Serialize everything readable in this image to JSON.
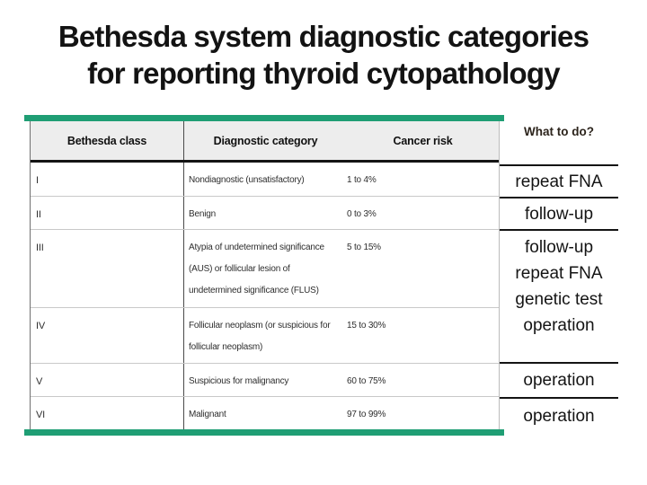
{
  "slide": {
    "title_line1": "Bethesda system diagnostic categories",
    "title_line2": "for reporting thyroid cytopathology"
  },
  "table": {
    "headers": [
      "Bethesda class",
      "Diagnostic category",
      "Cancer risk"
    ],
    "rows": [
      {
        "class": "I",
        "category": "Nondiagnostic (unsatisfactory)",
        "risk": "1 to 4%"
      },
      {
        "class": "II",
        "category": "Benign",
        "risk": "0 to 3%"
      },
      {
        "class": "III",
        "category": "Atypia of undetermined significance (AUS) or follicular lesion of undetermined significance (FLUS)",
        "risk": "5 to 15%"
      },
      {
        "class": "IV",
        "category": "Follicular neoplasm (or suspicious for follicular neoplasm)",
        "risk": "15 to 30%"
      },
      {
        "class": "V",
        "category": "Suspicious for malignancy",
        "risk": "60 to 75%"
      },
      {
        "class": "VI",
        "category": "Malignant",
        "risk": "97 to 99%"
      }
    ]
  },
  "what_to_do": {
    "header": "What to do?",
    "sections": [
      {
        "items": [
          "repeat FNA"
        ]
      },
      {
        "items": [
          "follow-up"
        ]
      },
      {
        "items": [
          "follow-up",
          "repeat FNA",
          "genetic test",
          "operation"
        ]
      },
      {
        "items": [
          "operation"
        ]
      },
      {
        "items": [
          "operation"
        ]
      }
    ]
  },
  "colors": {
    "accent_green": "#1f9e74"
  }
}
